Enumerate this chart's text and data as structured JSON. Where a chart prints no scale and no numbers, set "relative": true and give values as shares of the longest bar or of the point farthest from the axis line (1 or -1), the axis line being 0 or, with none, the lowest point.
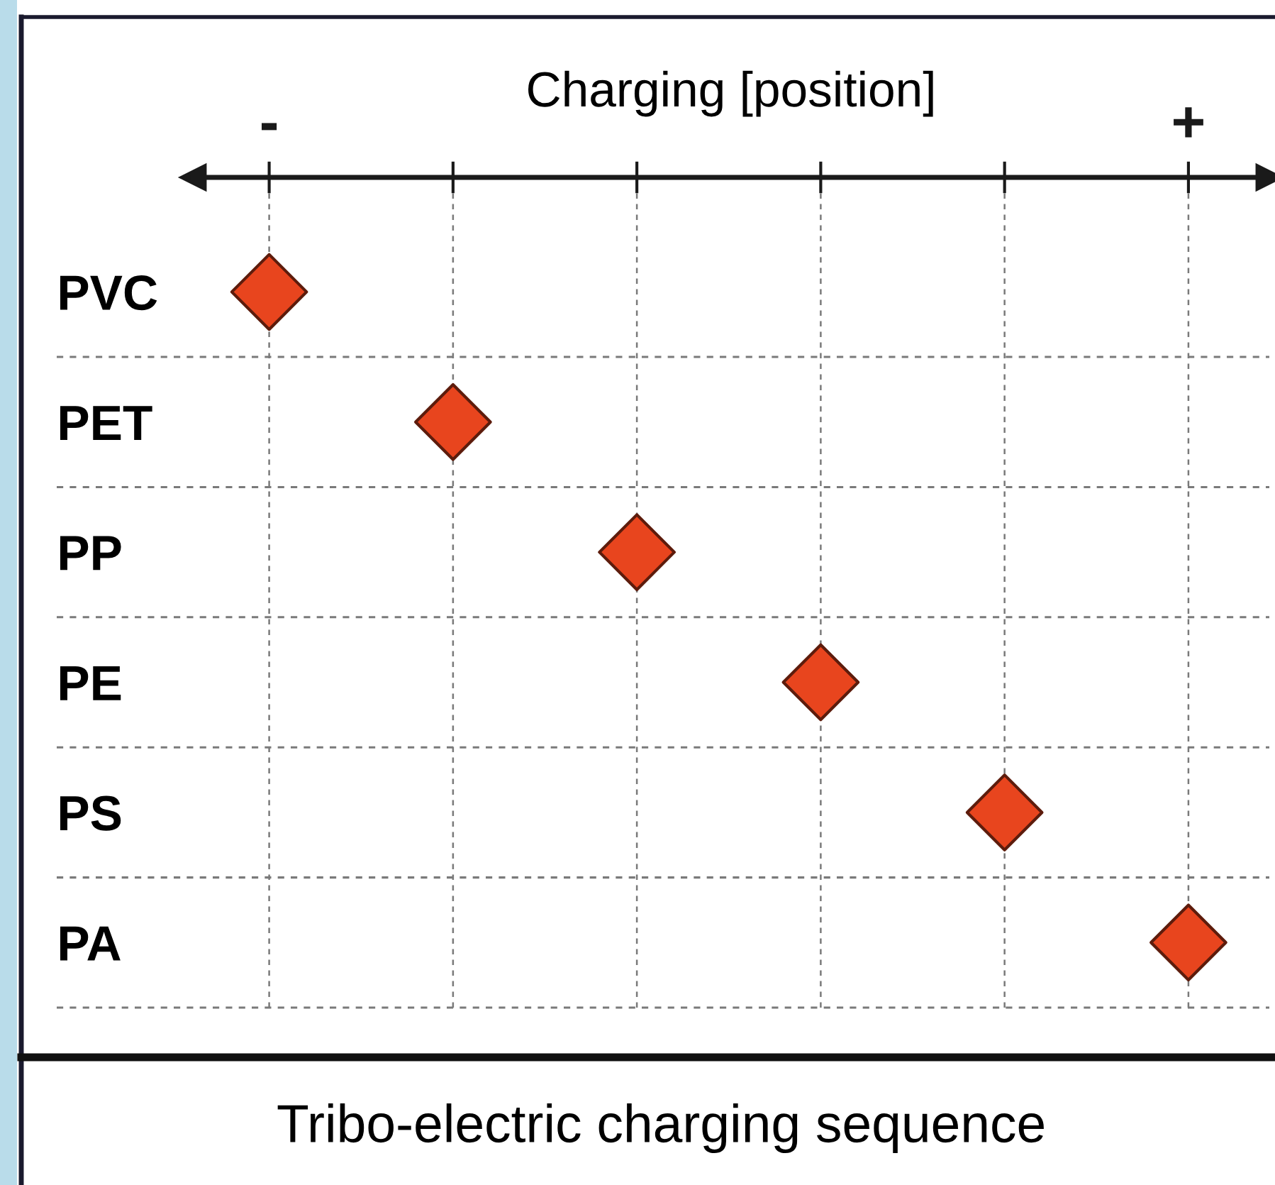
{
  "chart_data": {
    "type": "scatter",
    "orientation": "horizontal",
    "relative": true,
    "xlabel": "Charging [position]",
    "categories": [
      "PVC",
      "PET",
      "PP",
      "PE",
      "PS",
      "PA"
    ],
    "series": [
      {
        "color": "#e8451e",
        "values": [
          0,
          0.2,
          0.4,
          0.6,
          0.8,
          1
        ]
      }
    ],
    "marker": "diamond",
    "grid": true,
    "annotations": [
      "-",
      "+",
      "Tribo-electric charging sequence"
    ]
  }
}
